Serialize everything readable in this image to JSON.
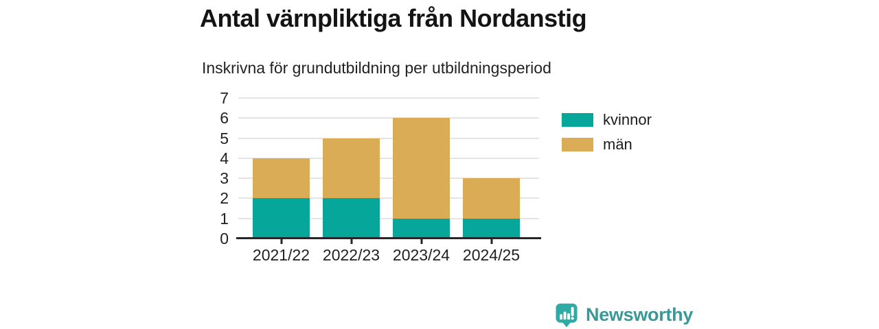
{
  "title": "Antal värnpliktiga från Nordanstig",
  "subtitle": "Inskrivna för grundutbildning per utbildningsperiod",
  "brand": {
    "label": "Newsworthy",
    "icon": "newsworthy-speech-bubble-chart-icon",
    "text_color": "#3a9897",
    "icon_color": "#2faaa4"
  },
  "colors": {
    "background": "#ffffff",
    "text": "#1c1c1c",
    "axis": "#26262a",
    "grid": "#e4e4e4",
    "kvinnor": "#06a79a",
    "man": "#d9ac55"
  },
  "chart_data": {
    "type": "bar",
    "stacked": true,
    "title": "Antal värnpliktiga från Nordanstig",
    "subtitle": "Inskrivna för grundutbildning per utbildningsperiod",
    "categories": [
      "2021/22",
      "2022/23",
      "2023/24",
      "2024/25"
    ],
    "series": [
      {
        "name": "kvinnor",
        "color": "#06a79a",
        "values": [
          2,
          2,
          1,
          1
        ]
      },
      {
        "name": "män",
        "color": "#d9ac55",
        "values": [
          2,
          3,
          5,
          2
        ]
      }
    ],
    "totals": [
      4,
      5,
      6,
      3
    ],
    "xlabel": "",
    "ylabel": "",
    "ylim": [
      0,
      7
    ],
    "yticks": [
      0,
      1,
      2,
      3,
      4,
      5,
      6,
      7
    ],
    "grid": true,
    "legend_position": "right-top"
  }
}
